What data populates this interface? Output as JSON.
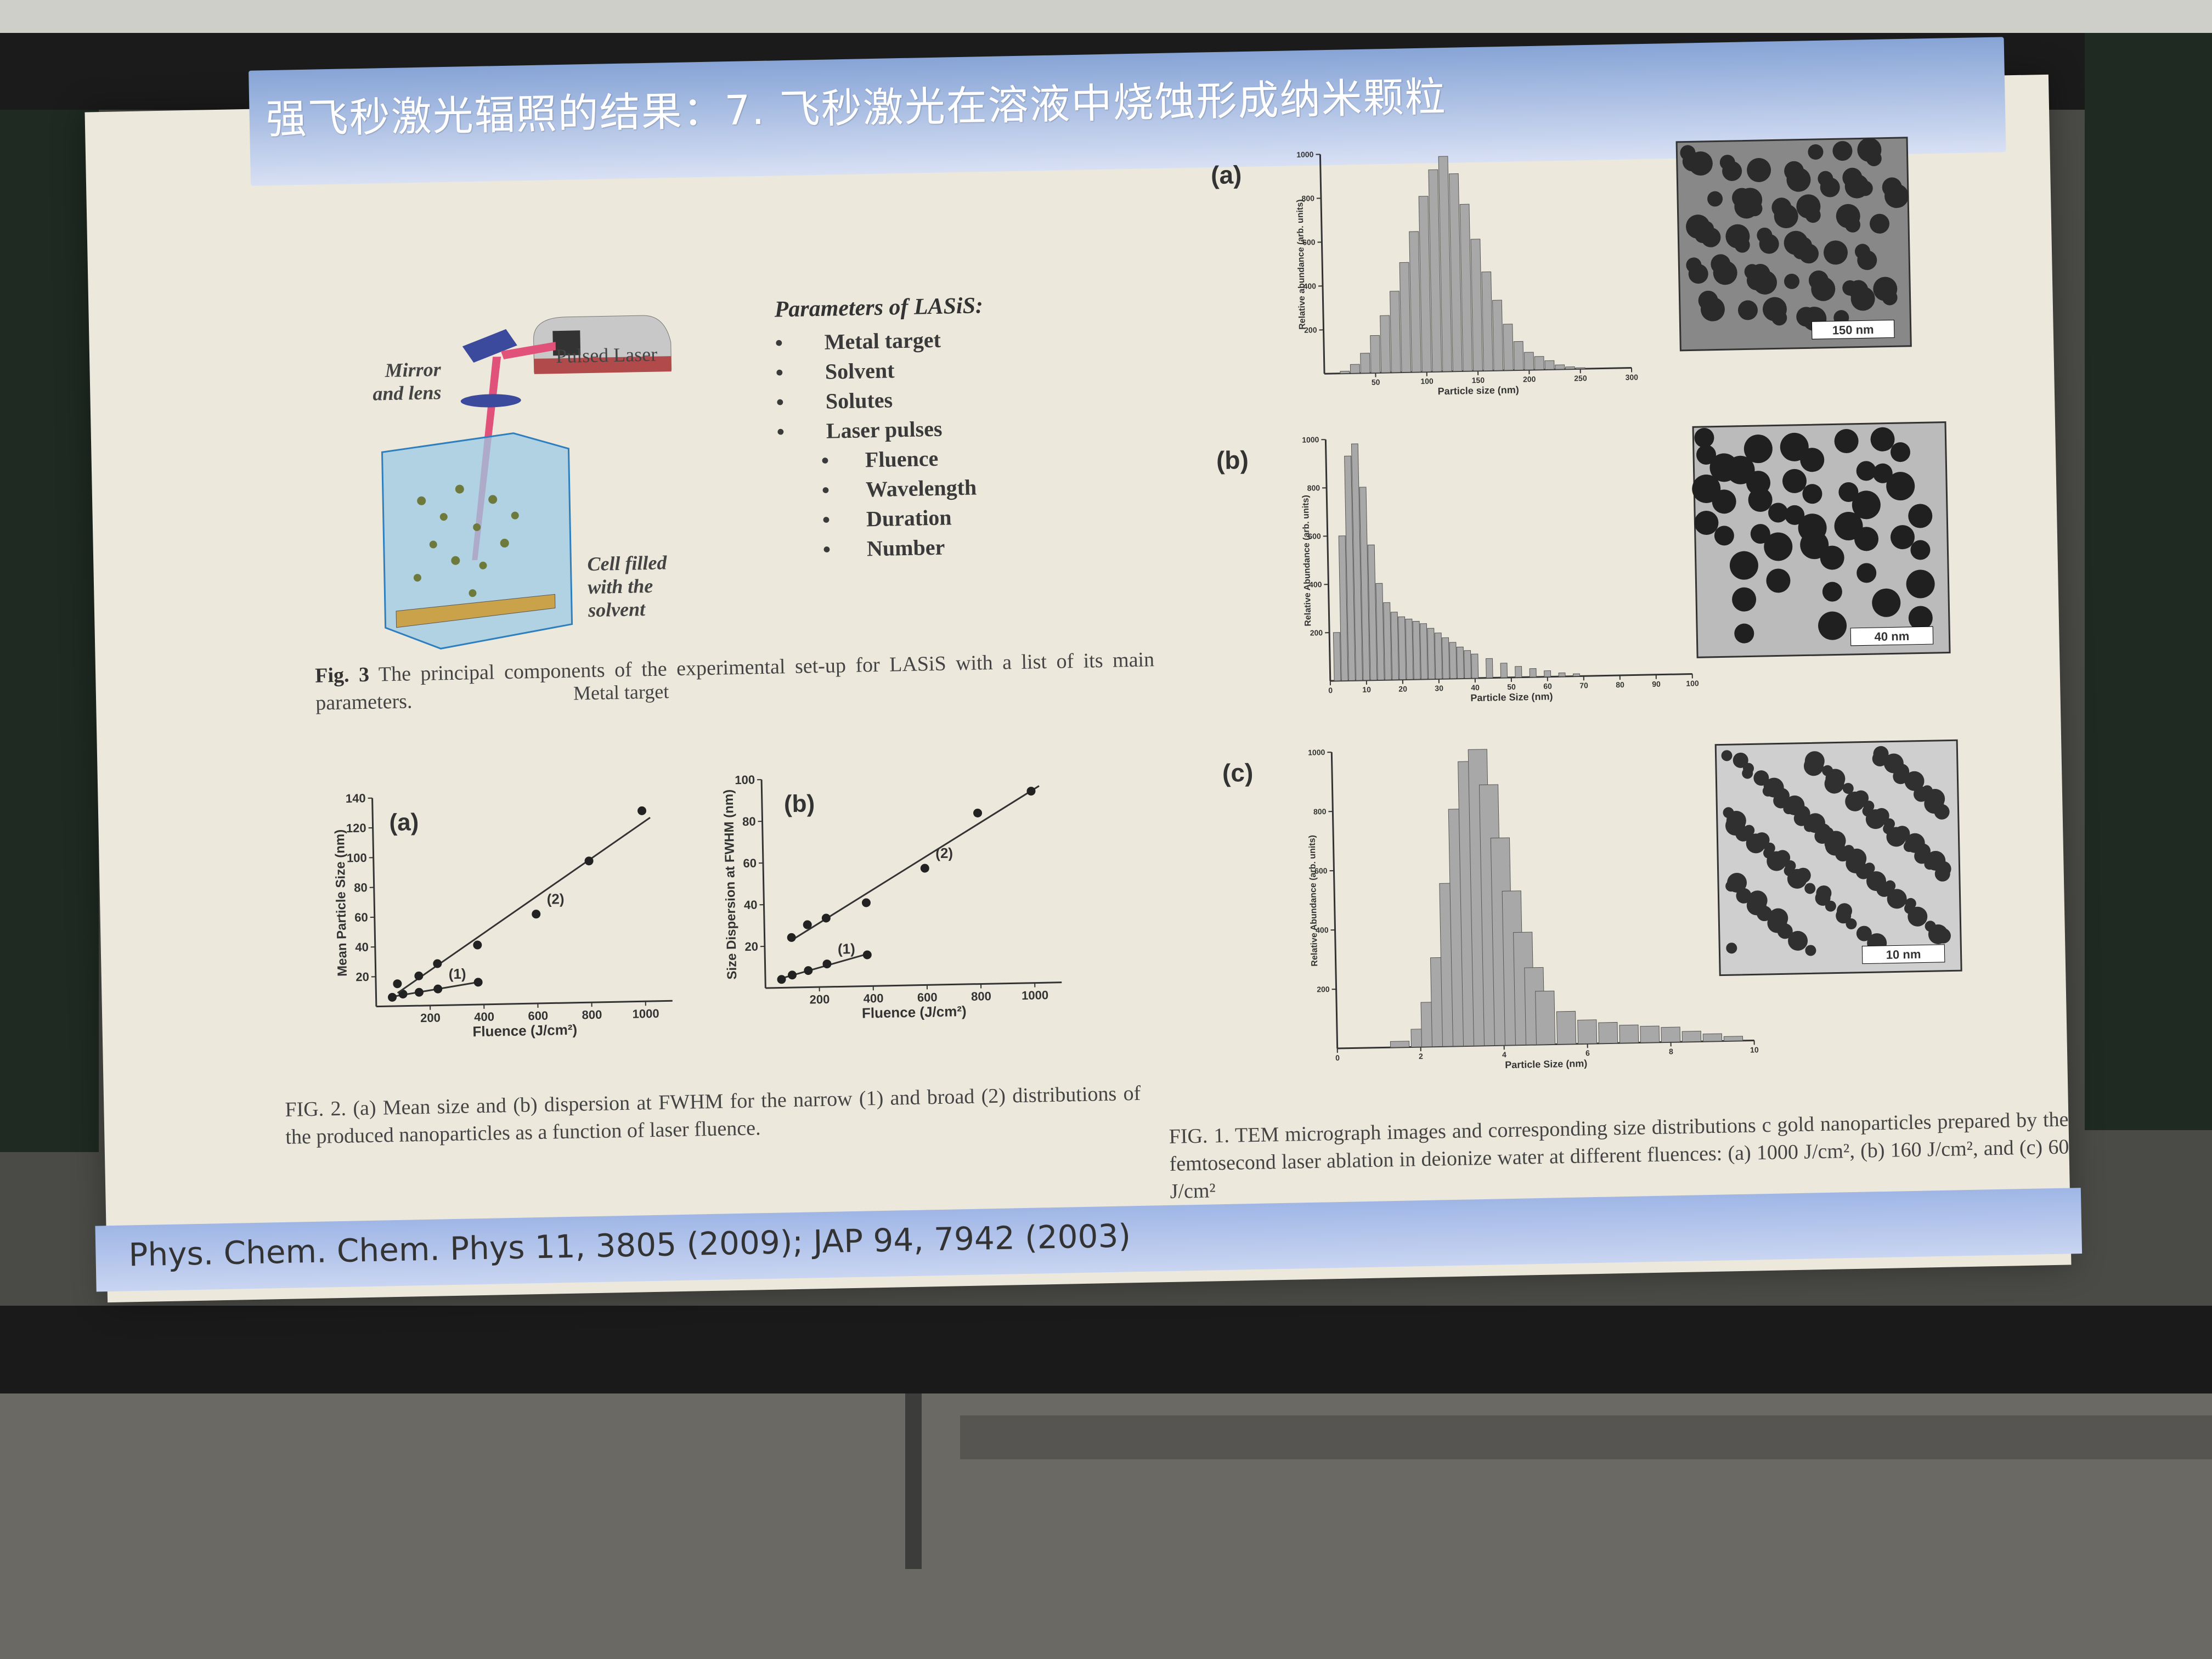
{
  "slide": {
    "title": "强飞秒激光辐照的结果：7. 飞秒激光在溶液中烧蚀形成纳米颗粒",
    "footer": "Phys. Chem. Chem. Phys 11, 3805 (2009); JAP 94, 7942 (2003)"
  },
  "fig3": {
    "mirror_label": "Mirror and lens",
    "laser_label": "Pulsed Laser",
    "cell_label": "Cell filled with the solvent",
    "target_label": "Metal target",
    "params_title": "Parameters of LASiS:",
    "params": [
      "Metal target",
      "Solvent",
      "Solutes",
      "Laser pulses"
    ],
    "laser_params": [
      "Fluence",
      "Wavelength",
      "Duration",
      "Number"
    ],
    "caption_label": "Fig. 3",
    "caption": "The principal components of the experimental set-up for LASiS with a list of its main parameters."
  },
  "fig2": {
    "caption": "FIG. 2. (a) Mean size and (b) dispersion at FWHM for the narrow (1) and broad (2) distributions of the produced nanoparticles as a function of laser fluence."
  },
  "fig1": {
    "caption": "FIG. 1. TEM micrograph images and corresponding size distributions c gold nanoparticles prepared by the femtosecond laser ablation in deionize water at different fluences: (a) 1000 J/cm², (b) 160 J/cm², and (c) 60 J/cm²"
  },
  "chart_data": [
    {
      "id": "fig2a",
      "type": "scatter",
      "panel_label": "(a)",
      "xlabel": "Fluence (J/cm²)",
      "ylabel": "Mean Particle Size (nm)",
      "xlim": [
        0,
        1100
      ],
      "ylim": [
        0,
        140
      ],
      "xticks": [
        200,
        400,
        600,
        800,
        1000
      ],
      "yticks": [
        20,
        40,
        60,
        80,
        100,
        120,
        140
      ],
      "series": [
        {
          "name": "(1)",
          "x": [
            60,
            100,
            160,
            230,
            380
          ],
          "y": [
            6,
            8,
            9,
            11,
            15
          ]
        },
        {
          "name": "(2)",
          "x": [
            80,
            160,
            230,
            380,
            600,
            800,
            1000
          ],
          "y": [
            15,
            20,
            28,
            40,
            60,
            95,
            128
          ]
        }
      ]
    },
    {
      "id": "fig2b",
      "type": "scatter",
      "panel_label": "(b)",
      "xlabel": "Fluence (J/cm²)",
      "ylabel": "Size Dispersion at FWHM (nm)",
      "xlim": [
        0,
        1100
      ],
      "ylim": [
        0,
        100
      ],
      "xticks": [
        200,
        400,
        600,
        800,
        1000
      ],
      "yticks": [
        20,
        40,
        60,
        80,
        100
      ],
      "series": [
        {
          "name": "(1)",
          "x": [
            60,
            100,
            160,
            230,
            380
          ],
          "y": [
            4,
            6,
            8,
            11,
            15
          ]
        },
        {
          "name": "(2)",
          "x": [
            100,
            160,
            230,
            380,
            600,
            800,
            1000
          ],
          "y": [
            24,
            30,
            33,
            40,
            56,
            82,
            92
          ]
        }
      ]
    },
    {
      "id": "fig1a",
      "type": "bar",
      "panel_label": "(a)",
      "xlabel": "Particle size (nm)",
      "ylabel": "Relative abundance (arb. units)",
      "xlim": [
        0,
        300
      ],
      "ylim": [
        0,
        1000
      ],
      "xticks": [
        50,
        100,
        150,
        200,
        250,
        300
      ],
      "yticks": [
        200,
        400,
        600,
        800,
        1000
      ],
      "tem_scale": "150 nm",
      "x": [
        20,
        30,
        40,
        50,
        60,
        70,
        80,
        90,
        100,
        110,
        120,
        130,
        140,
        150,
        160,
        170,
        180,
        190,
        200,
        210,
        220,
        230,
        240,
        250
      ],
      "values": [
        10,
        40,
        90,
        170,
        260,
        370,
        500,
        640,
        800,
        920,
        980,
        900,
        760,
        600,
        450,
        320,
        210,
        130,
        80,
        60,
        40,
        20,
        10,
        5
      ]
    },
    {
      "id": "fig1b",
      "type": "bar",
      "panel_label": "(b)",
      "xlabel": "Particle Size (nm)",
      "ylabel": "Relative Abundance (arb. units)",
      "xlim": [
        0,
        100
      ],
      "ylim": [
        0,
        1000
      ],
      "xticks": [
        0,
        10,
        20,
        30,
        40,
        50,
        60,
        70,
        80,
        90,
        100
      ],
      "yticks": [
        200,
        400,
        600,
        800,
        1000
      ],
      "tem_scale": "40 nm",
      "x": [
        2,
        4,
        6,
        8,
        10,
        12,
        14,
        16,
        18,
        20,
        22,
        24,
        26,
        28,
        30,
        32,
        34,
        36,
        38,
        40,
        44,
        48,
        52,
        56,
        60,
        64,
        68
      ],
      "values": [
        200,
        600,
        930,
        980,
        800,
        560,
        400,
        320,
        280,
        260,
        250,
        240,
        230,
        210,
        190,
        170,
        150,
        130,
        115,
        100,
        80,
        60,
        45,
        35,
        25,
        15,
        10
      ]
    },
    {
      "id": "fig1c",
      "type": "bar",
      "panel_label": "(c)",
      "xlabel": "Particle Size (nm)",
      "ylabel": "Relative Abundance (arb. units)",
      "xlim": [
        0,
        10
      ],
      "ylim": [
        0,
        1000
      ],
      "xticks": [
        0,
        2,
        4,
        6,
        8,
        10
      ],
      "yticks": [
        200,
        400,
        600,
        800,
        1000
      ],
      "tem_scale": "10 nm",
      "x": [
        1.5,
        2,
        2.25,
        2.5,
        2.75,
        3,
        3.25,
        3.5,
        3.75,
        4,
        4.25,
        4.5,
        4.75,
        5,
        5.5,
        6,
        6.5,
        7,
        7.5,
        8,
        8.5,
        9,
        9.5
      ],
      "values": [
        20,
        60,
        150,
        300,
        550,
        800,
        960,
        1000,
        880,
        700,
        520,
        380,
        260,
        180,
        110,
        80,
        70,
        60,
        55,
        50,
        35,
        25,
        15
      ]
    }
  ]
}
